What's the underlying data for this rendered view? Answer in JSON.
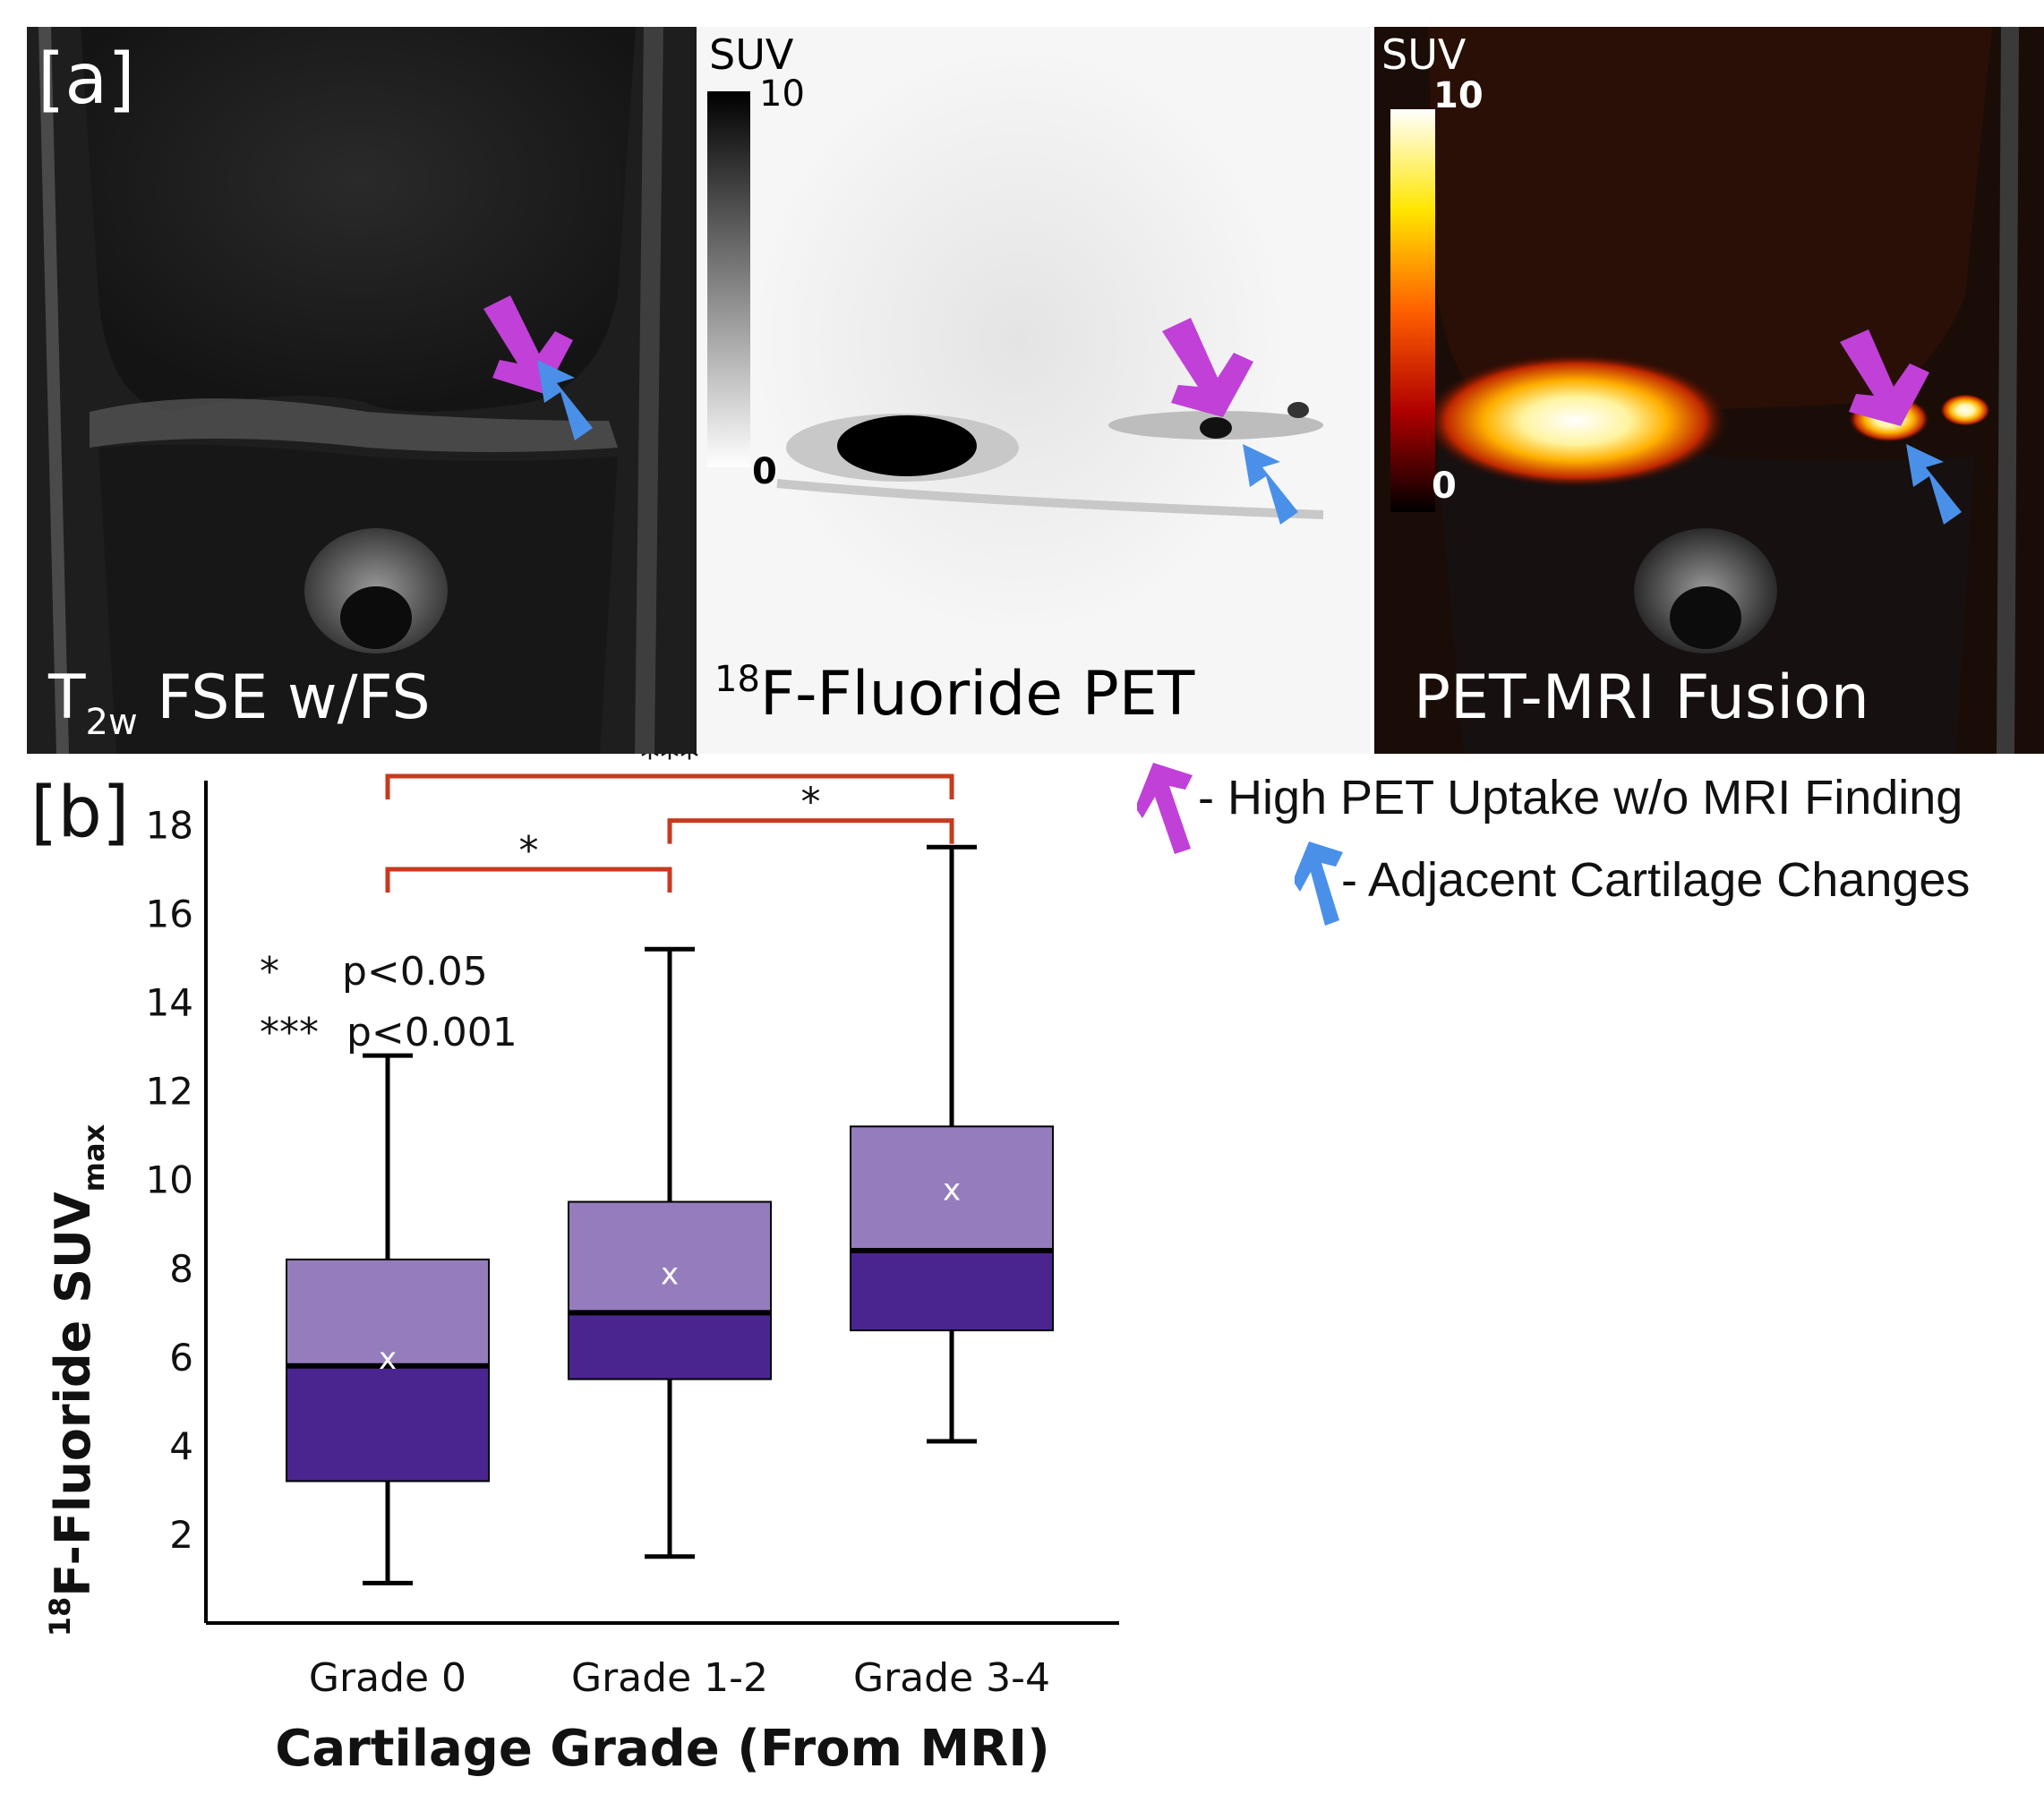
{
  "panel_a": {
    "label": "[a]",
    "mri": {
      "caption_main": "T",
      "caption_sub": "2w",
      "caption_rest": " FSE w/FS"
    },
    "pet": {
      "caption_sup": "18",
      "caption_rest": "F-Fluoride PET",
      "colorbar": {
        "title": "SUV",
        "max": "10",
        "min": "0",
        "colormap": "inverted grayscale"
      }
    },
    "fusion": {
      "caption": "PET-MRI Fusion",
      "colorbar": {
        "title": "SUV",
        "max": "10",
        "min": "0",
        "colormap": "hot"
      }
    }
  },
  "legend": {
    "items": [
      {
        "icon": "magenta-arrow-icon",
        "color": "#c040d8",
        "text": "- High PET Uptake w/o MRI Finding"
      },
      {
        "icon": "blue-arrow-icon",
        "color": "#4a90e8",
        "text": "- Adjacent Cartilage Changes"
      }
    ]
  },
  "panel_b_label": "[b]",
  "chart_data": {
    "type": "box",
    "title": "",
    "xlabel": "Cartilage Grade (From MRI)",
    "ylabel_sup": "18",
    "ylabel_main": "F-Fluoride SUV",
    "ylabel_sub": "max",
    "ylim": [
      0,
      19
    ],
    "yticks": [
      2,
      4,
      6,
      8,
      10,
      12,
      14,
      16,
      18
    ],
    "grid": false,
    "categories": [
      "Grade 0",
      "Grade 1-2",
      "Grade 3-4"
    ],
    "boxes": [
      {
        "category": "Grade 0",
        "whisker_low": 0.9,
        "q1": 3.2,
        "median": 5.8,
        "q3": 8.2,
        "whisker_high": 12.8,
        "mean": 6.0,
        "mean_marker": "x"
      },
      {
        "category": "Grade 1-2",
        "whisker_low": 1.5,
        "q1": 5.5,
        "median": 7.0,
        "q3": 9.5,
        "whisker_high": 15.2,
        "mean": 7.9,
        "mean_marker": "x"
      },
      {
        "category": "Grade 3-4",
        "whisker_low": 4.1,
        "q1": 6.6,
        "median": 8.4,
        "q3": 11.2,
        "whisker_high": 17.5,
        "mean": 9.8,
        "mean_marker": "x"
      }
    ],
    "colors": {
      "upper_box": "#957dbd",
      "lower_box": "#4b258f",
      "bracket": "#c83a1e",
      "axis": "#000000"
    },
    "significance": [
      {
        "from": "Grade 0",
        "to": "Grade 1-2",
        "y": 17.0,
        "label": "*"
      },
      {
        "from": "Grade 1-2",
        "to": "Grade 3-4",
        "y": 18.1,
        "label": "*"
      },
      {
        "from": "Grade 0",
        "to": "Grade 3-4",
        "y": 19.1,
        "label": "***"
      }
    ],
    "annotation_key": [
      {
        "symbol": "*",
        "text": "p<0.05"
      },
      {
        "symbol": "***",
        "text": "p<0.001"
      }
    ]
  }
}
